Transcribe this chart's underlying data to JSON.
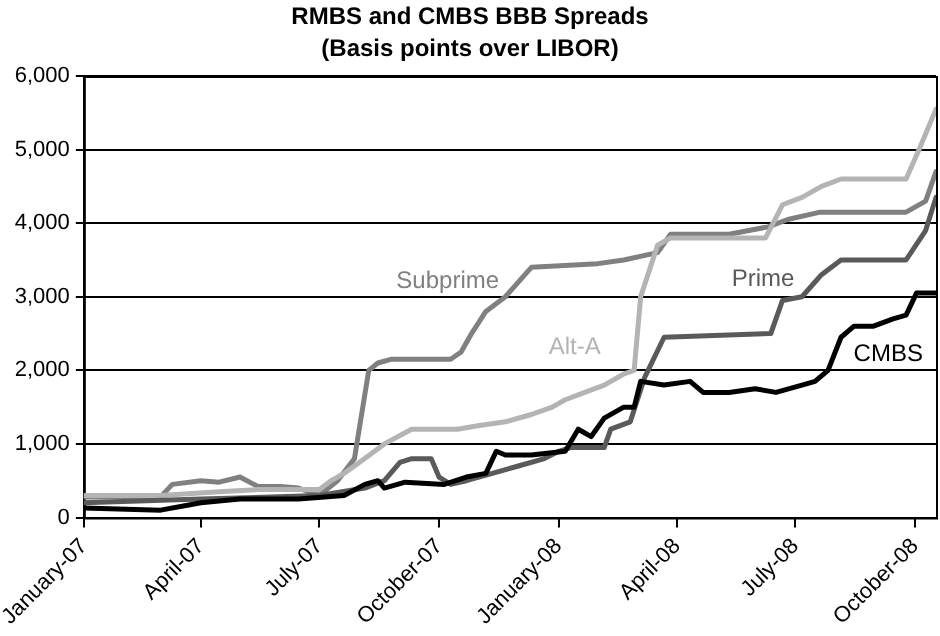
{
  "chart_data": {
    "type": "line",
    "title": "RMBS and CMBS BBB Spreads",
    "subtitle": "(Basis points over LIBOR)",
    "xlim": [
      "2007-01-01",
      "2008-10-17"
    ],
    "xticks": [
      {
        "value": "2007-01-01",
        "label": "January-07"
      },
      {
        "value": "2007-04-01",
        "label": "April-07"
      },
      {
        "value": "2007-07-01",
        "label": "July-07"
      },
      {
        "value": "2007-10-01",
        "label": "October-07"
      },
      {
        "value": "2008-01-01",
        "label": "January-08"
      },
      {
        "value": "2008-04-01",
        "label": "April-08"
      },
      {
        "value": "2008-07-01",
        "label": "July-08"
      },
      {
        "value": "2008-10-01",
        "label": "October-08"
      }
    ],
    "ylim": [
      0,
      6000
    ],
    "yticks": [
      0,
      {
        "value": 1000,
        "label": "1,000"
      },
      {
        "value": 2000,
        "label": "2,000"
      },
      {
        "value": 3000,
        "label": "3,000"
      },
      {
        "value": 4000,
        "label": "4,000"
      },
      {
        "value": 5000,
        "label": "5,000"
      },
      {
        "value": 6000,
        "label": "6,000"
      }
    ],
    "grid": "y",
    "legend": false,
    "marker": "none",
    "line_style": "solid",
    "series": [
      {
        "name": "Subprime",
        "color": "#808080",
        "x": [
          "2007-01-01",
          "2007-03-01",
          "2007-03-10",
          "2007-04-01",
          "2007-04-15",
          "2007-05-01",
          "2007-05-15",
          "2007-06-01",
          "2007-06-15",
          "2007-07-01",
          "2007-07-15",
          "2007-07-28",
          "2007-08-08",
          "2007-08-15",
          "2007-08-25",
          "2007-10-10",
          "2007-10-18",
          "2007-10-26",
          "2007-11-06",
          "2007-11-21",
          "2007-12-11",
          "2008-01-31",
          "2008-02-20",
          "2008-03-17",
          "2008-03-27",
          "2008-05-11",
          "2008-06-10",
          "2008-06-25",
          "2008-07-20",
          "2008-09-24",
          "2008-10-09",
          "2008-10-17"
        ],
        "values": [
          280,
          280,
          450,
          500,
          480,
          550,
          420,
          420,
          400,
          300,
          500,
          800,
          2000,
          2100,
          2150,
          2150,
          2250,
          2500,
          2800,
          3000,
          3400,
          3450,
          3500,
          3600,
          3850,
          3850,
          3950,
          4050,
          4150,
          4150,
          4300,
          4700
        ]
      },
      {
        "name": "Alt-A",
        "color": "#b4b4b4",
        "x": [
          "2007-01-01",
          "2007-03-01",
          "2007-04-15",
          "2007-05-15",
          "2007-07-01",
          "2007-07-10",
          "2007-07-20",
          "2007-08-01",
          "2007-08-20",
          "2007-09-10",
          "2007-10-15",
          "2007-11-01",
          "2007-11-21",
          "2007-12-11",
          "2007-12-27",
          "2008-01-06",
          "2008-01-21",
          "2008-02-05",
          "2008-02-20",
          "2008-02-28",
          "2008-03-04",
          "2008-03-17",
          "2008-03-27",
          "2008-06-08",
          "2008-06-21",
          "2008-07-06",
          "2008-07-21",
          "2008-08-05",
          "2008-09-24",
          "2008-10-04",
          "2008-10-17"
        ],
        "values": [
          300,
          300,
          350,
          380,
          380,
          500,
          600,
          750,
          1000,
          1200,
          1200,
          1250,
          1300,
          1400,
          1500,
          1600,
          1700,
          1800,
          1950,
          2000,
          3000,
          3700,
          3800,
          3800,
          4250,
          4350,
          4500,
          4600,
          4600,
          5000,
          5550
        ]
      },
      {
        "name": "Prime",
        "color": "#5a5a5a",
        "x": [
          "2007-01-01",
          "2007-04-01",
          "2007-07-01",
          "2007-08-05",
          "2007-08-20",
          "2007-09-01",
          "2007-09-10",
          "2007-09-25",
          "2007-10-01",
          "2007-10-10",
          "2007-10-22",
          "2007-11-11",
          "2007-12-01",
          "2007-12-21",
          "2008-01-01",
          "2008-01-10",
          "2008-02-05",
          "2008-02-10",
          "2008-02-25",
          "2008-03-07",
          "2008-03-22",
          "2008-06-12",
          "2008-06-21",
          "2008-07-06",
          "2008-07-21",
          "2008-08-05",
          "2008-09-24",
          "2008-10-09",
          "2008-10-17"
        ],
        "values": [
          200,
          250,
          300,
          400,
          500,
          750,
          800,
          800,
          550,
          450,
          500,
          600,
          700,
          800,
          900,
          950,
          950,
          1200,
          1300,
          1900,
          2450,
          2500,
          2950,
          3000,
          3300,
          3500,
          3500,
          3900,
          4350
        ]
      },
      {
        "name": "CMBS",
        "color": "#000000",
        "x": [
          "2007-01-01",
          "2007-03-01",
          "2007-04-01",
          "2007-05-01",
          "2007-06-15",
          "2007-07-20",
          "2007-08-05",
          "2007-08-15",
          "2007-08-20",
          "2007-09-05",
          "2007-10-05",
          "2007-10-22",
          "2007-11-06",
          "2007-11-14",
          "2007-11-21",
          "2007-12-11",
          "2008-01-06",
          "2008-01-16",
          "2008-01-26",
          "2008-02-05",
          "2008-02-20",
          "2008-02-28",
          "2008-03-04",
          "2008-03-22",
          "2008-04-11",
          "2008-04-21",
          "2008-05-11",
          "2008-05-31",
          "2008-06-16",
          "2008-07-06",
          "2008-07-16",
          "2008-07-26",
          "2008-08-05",
          "2008-08-15",
          "2008-08-30",
          "2008-09-14",
          "2008-09-24",
          "2008-10-02",
          "2008-10-17"
        ],
        "values": [
          130,
          100,
          200,
          250,
          250,
          300,
          450,
          500,
          400,
          480,
          450,
          550,
          600,
          900,
          850,
          850,
          900,
          1200,
          1100,
          1350,
          1500,
          1500,
          1850,
          1800,
          1850,
          1700,
          1700,
          1750,
          1700,
          1800,
          1850,
          2000,
          2450,
          2600,
          2600,
          2700,
          2750,
          3050,
          3050
        ]
      }
    ]
  }
}
